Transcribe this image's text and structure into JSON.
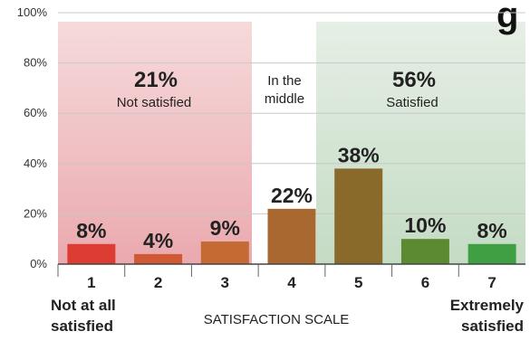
{
  "header": {
    "partial_title": "g"
  },
  "zones": [
    {
      "pct": "21%",
      "label": "Not satisfied",
      "color": "#efc0c3"
    },
    {
      "pct": "",
      "label_line1": "In the",
      "label_line2": "middle",
      "color": "#ffffff"
    },
    {
      "pct": "56%",
      "label": "Satisfied",
      "color": "#cfe2cf"
    }
  ],
  "chart_data": {
    "type": "bar",
    "categories": [
      "1",
      "2",
      "3",
      "4",
      "5",
      "6",
      "7"
    ],
    "values": [
      8,
      4,
      9,
      22,
      38,
      10,
      8
    ],
    "value_labels": [
      "8%",
      "4%",
      "9%",
      "22%",
      "38%",
      "10%",
      "8%"
    ],
    "bar_colors": [
      "#dd3c32",
      "#d05832",
      "#c46a33",
      "#a9682f",
      "#8a6a2b",
      "#5c8a32",
      "#3fa043"
    ],
    "ylim": [
      0,
      100
    ],
    "yticks": [
      "0%",
      "20%",
      "40%",
      "60%",
      "80%",
      "100%"
    ],
    "xlabel": "SATISFACTION SCALE",
    "x_end_labels": {
      "left_line1": "Not at all",
      "left_line2": "satisfied",
      "right_line1": "Extremely",
      "right_line2": "satisfied"
    },
    "grid": true
  }
}
